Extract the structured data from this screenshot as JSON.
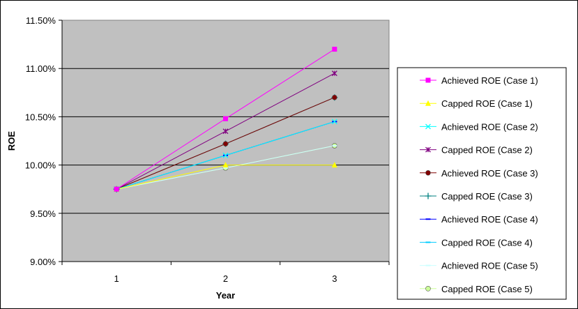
{
  "chart_data": {
    "type": "line",
    "title": "",
    "xlabel": "Year",
    "ylabel": "ROE",
    "categories": [
      "1",
      "2",
      "3"
    ],
    "ylim": [
      0.09,
      0.115
    ],
    "y_ticks": [
      0.09,
      0.095,
      0.1,
      0.105,
      0.11,
      0.115
    ],
    "y_tick_labels": [
      "9.00%",
      "9.50%",
      "10.00%",
      "10.50%",
      "11.00%",
      "11.50%"
    ],
    "plot_background": "#c0c0c0",
    "grid": "horizontal",
    "legend_position": "right",
    "series": [
      {
        "name": "Achieved ROE (Case 1)",
        "values": [
          0.0975,
          0.1048,
          0.112
        ],
        "color": "#ff00ff",
        "marker": "square"
      },
      {
        "name": "Capped ROE (Case 1)",
        "values": [
          0.0975,
          0.1,
          0.1
        ],
        "color": "#ffff00",
        "marker": "triangle"
      },
      {
        "name": "Achieved ROE (Case 2)",
        "values": [
          0.0975,
          0.101,
          0.1045
        ],
        "color": "#00ffff",
        "marker": "x"
      },
      {
        "name": "Capped ROE (Case 2)",
        "values": [
          0.0975,
          0.1035,
          0.1095
        ],
        "color": "#800080",
        "marker": "star"
      },
      {
        "name": "Achieved ROE (Case 3)",
        "values": [
          0.0975,
          0.1022,
          0.107
        ],
        "color": "#800000",
        "marker": "circle"
      },
      {
        "name": "Capped ROE (Case 3)",
        "values": [
          0.0975,
          0.1022,
          0.107
        ],
        "color": "#008080",
        "marker": "plus"
      },
      {
        "name": "Achieved ROE (Case 4)",
        "values": [
          0.0975,
          0.101,
          0.1045
        ],
        "color": "#0000ff",
        "marker": "dash"
      },
      {
        "name": "Capped ROE (Case 4)",
        "values": [
          0.0975,
          0.101,
          0.1045
        ],
        "color": "#00ccff",
        "marker": "dash"
      },
      {
        "name": "Achieved ROE (Case 5)",
        "values": [
          0.0975,
          0.0997,
          0.102
        ],
        "color": "#ccffff",
        "marker": "dash"
      },
      {
        "name": "Capped ROE (Case 5)",
        "values": [
          0.0975,
          0.0997,
          0.102
        ],
        "color": "#ccff99",
        "marker": "circle"
      }
    ]
  }
}
